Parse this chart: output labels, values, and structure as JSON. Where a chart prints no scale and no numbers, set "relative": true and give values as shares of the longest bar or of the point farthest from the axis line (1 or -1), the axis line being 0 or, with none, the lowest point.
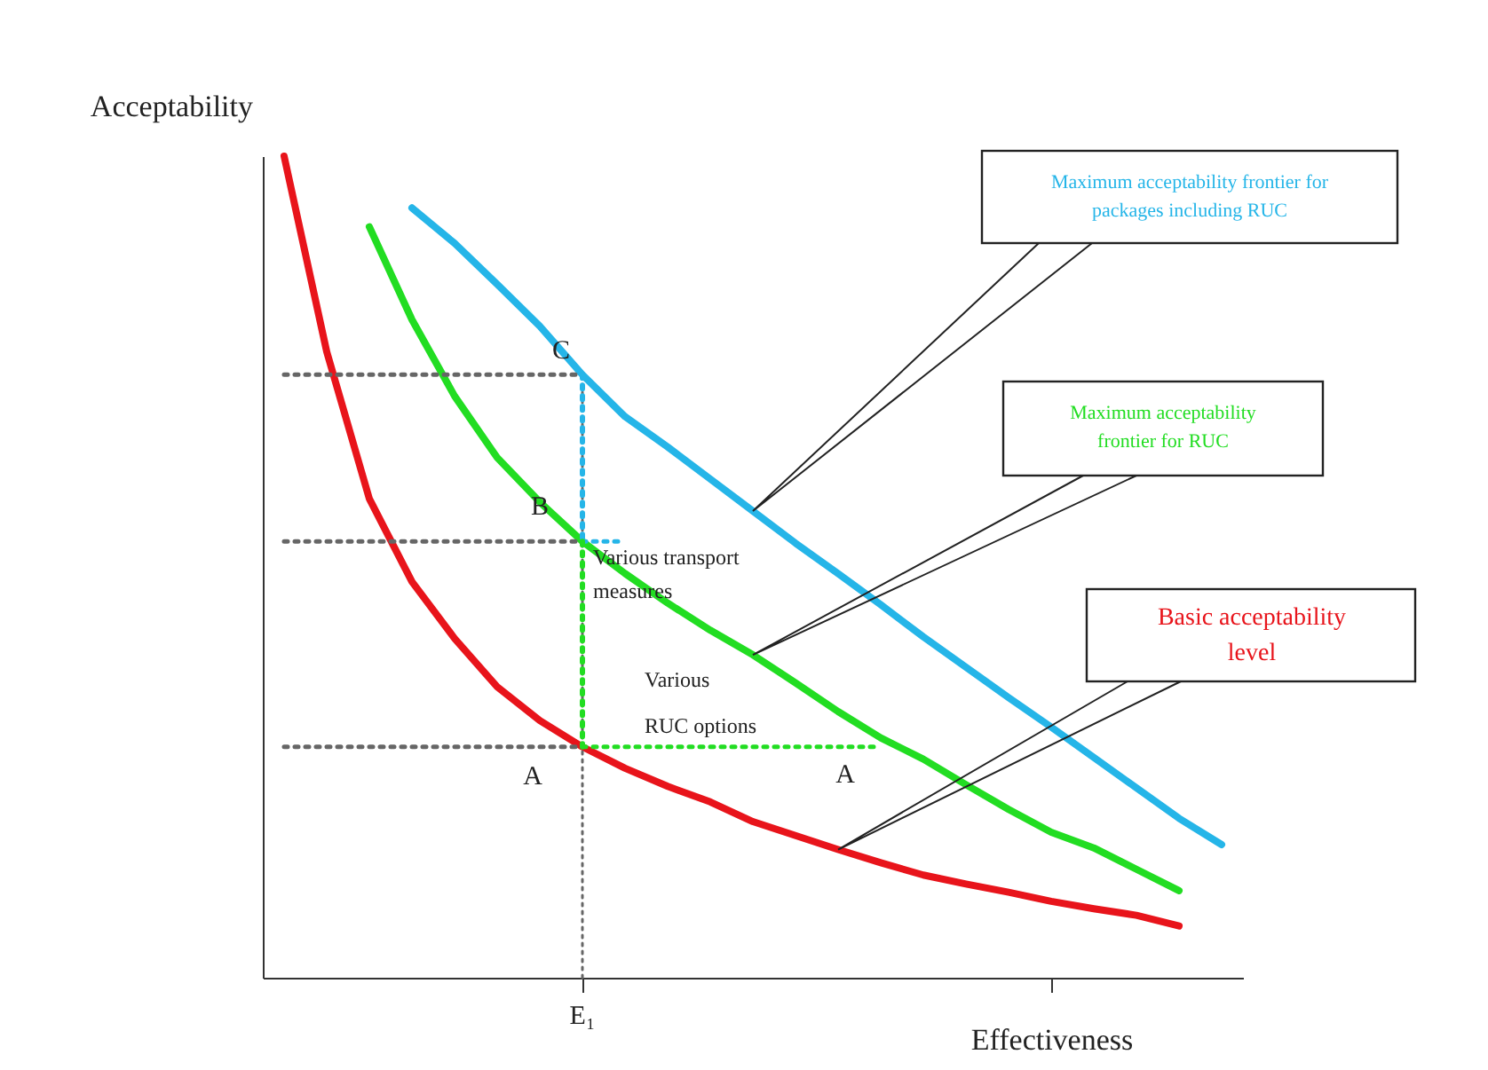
{
  "chart_data": {
    "type": "line",
    "relative": true,
    "xlabel": "Effectiveness",
    "ylabel": "Acceptability",
    "categories": [
      null,
      null,
      null,
      null,
      null,
      null,
      null,
      null,
      null,
      null,
      null,
      null,
      null,
      null,
      null,
      null,
      null,
      null,
      null,
      null,
      null,
      null,
      null
    ],
    "series": [
      {
        "name": "Basic acceptability level",
        "color": "#e8141b",
        "values": [
          1,
          0.762,
          0.583,
          0.482,
          0.413,
          0.354,
          0.313,
          0.281,
          0.255,
          0.233,
          0.214,
          0.19,
          0.173,
          0.156,
          0.14,
          0.125,
          0.114,
          0.104,
          0.093,
          0.084,
          0.076,
          0.063,
          null
        ]
      },
      {
        "name": "Maximum acceptability frontier for RUC",
        "color": "#22dd22",
        "values": [
          null,
          null,
          0.914,
          0.801,
          0.708,
          0.633,
          0.579,
          0.531,
          0.492,
          0.456,
          0.423,
          0.393,
          0.359,
          0.324,
          0.292,
          0.266,
          0.235,
          0.205,
          0.177,
          0.158,
          0.132,
          0.106,
          null
        ]
      },
      {
        "name": "Maximum acceptability frontier for packages including RUC",
        "color": "#25b5e8",
        "values": [
          null,
          null,
          null,
          0.937,
          0.894,
          0.844,
          0.793,
          0.734,
          0.683,
          0.646,
          0.607,
          0.568,
          0.529,
          0.492,
          0.454,
          0.415,
          0.378,
          0.341,
          0.305,
          0.268,
          0.231,
          0.194,
          0.162
        ]
      },
      {
        "color": "#25b5e8",
        "line_style": "dotted",
        "values": [
          null,
          null,
          null,
          null,
          null,
          null,
          null,
          0.531,
          0.531,
          null,
          null,
          null,
          null,
          null,
          null,
          null,
          null,
          null,
          null,
          null,
          null,
          null,
          null
        ]
      },
      {
        "color": "#22dd22",
        "line_style": "dotted",
        "values": [
          null,
          null,
          null,
          null,
          null,
          null,
          null,
          0.281,
          0.281,
          0.281,
          0.281,
          0.281,
          0.281,
          0.281,
          0.281,
          null,
          null,
          null,
          null,
          null,
          null,
          null,
          null
        ]
      },
      {
        "color": "#666666",
        "line_style": "dotted",
        "values": [
          0.734,
          0.734,
          0.734,
          0.734,
          0.734,
          0.734,
          0.734,
          0.734,
          null,
          null,
          null,
          null,
          null,
          null,
          null,
          null,
          null,
          null,
          null,
          null,
          null,
          null,
          null
        ]
      },
      {
        "color": "#666666",
        "line_style": "dotted",
        "values": [
          0.531,
          0.531,
          0.531,
          0.531,
          0.531,
          0.531,
          0.531,
          0.531,
          null,
          null,
          null,
          null,
          null,
          null,
          null,
          null,
          null,
          null,
          null,
          null,
          null,
          null,
          null
        ]
      },
      {
        "color": "#666666",
        "line_style": "dotted",
        "values": [
          0.281,
          0.281,
          0.281,
          0.281,
          0.281,
          0.281,
          0.281,
          0.281,
          null,
          null,
          null,
          null,
          null,
          null,
          null,
          null,
          null,
          null,
          null,
          null,
          null,
          null,
          null
        ]
      }
    ],
    "annotations": [
      "Various transport measures",
      "Various RUC options",
      {
        "text": "C",
        "y": 0.734
      },
      {
        "text": "B",
        "y": 0.531
      },
      {
        "text": "A",
        "y": 0.281
      },
      {
        "text": "A",
        "y": 0.281
      },
      "E₁"
    ]
  }
}
